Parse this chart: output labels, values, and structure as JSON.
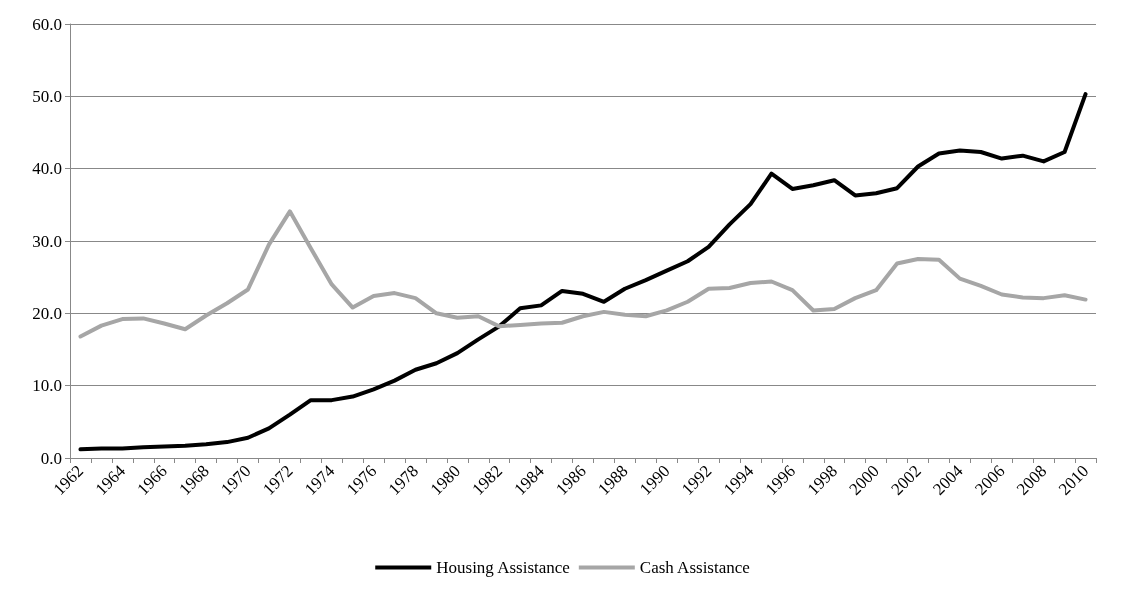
{
  "chart_data": {
    "type": "line",
    "categories": [
      "1962",
      null,
      "1964",
      null,
      "1966",
      null,
      "1968",
      null,
      "1970",
      null,
      "1972",
      null,
      "1974",
      null,
      "1976",
      null,
      "1978",
      null,
      "1980",
      null,
      "1982",
      null,
      "1984",
      null,
      "1986",
      null,
      "1988",
      null,
      "1990",
      null,
      "1992",
      null,
      "1994",
      null,
      "1996",
      null,
      "1998",
      null,
      "2000",
      null,
      "2002",
      null,
      "2004",
      null,
      "2006",
      null,
      "2008",
      null,
      "2010"
    ],
    "series": [
      {
        "name": "Housing Assistance",
        "color": "#000000",
        "values": [
          1.2,
          1.3,
          1.3,
          1.5,
          1.6,
          1.7,
          1.9,
          2.2,
          2.8,
          4.1,
          6.0,
          8.0,
          8.0,
          8.5,
          9.5,
          10.7,
          12.2,
          13.1,
          14.5,
          16.4,
          18.2,
          20.7,
          21.1,
          23.1,
          22.7,
          21.6,
          23.4,
          24.6,
          25.9,
          27.2,
          29.2,
          32.3,
          35.1,
          39.3,
          37.2,
          37.7,
          38.4,
          36.3,
          36.6,
          37.3,
          40.3,
          42.1,
          42.5,
          42.3,
          41.4,
          41.8,
          41.0,
          42.3,
          50.3
        ]
      },
      {
        "name": "Cash Assistance",
        "color": "#a6a6a6",
        "values": [
          16.8,
          18.3,
          19.2,
          19.3,
          18.6,
          17.8,
          19.7,
          21.4,
          23.3,
          29.5,
          34.1,
          29.0,
          24.0,
          20.8,
          22.4,
          22.8,
          22.1,
          20.0,
          19.4,
          19.6,
          18.2,
          18.4,
          18.6,
          18.7,
          19.6,
          20.2,
          19.8,
          19.6,
          20.4,
          21.6,
          23.4,
          23.5,
          24.2,
          24.4,
          23.2,
          20.4,
          20.6,
          22.1,
          23.2,
          26.9,
          27.5,
          27.4,
          24.8,
          23.8,
          22.6,
          22.2,
          22.1,
          22.5,
          21.9
        ]
      }
    ],
    "ylim": [
      0,
      60
    ],
    "yticks": [
      {
        "value": 0,
        "label": "0.0"
      },
      {
        "value": 10,
        "label": "10.0"
      },
      {
        "value": 20,
        "label": "20.0"
      },
      {
        "value": 30,
        "label": "30.0"
      },
      {
        "value": 40,
        "label": "40.0"
      },
      {
        "value": 50,
        "label": "50.0"
      },
      {
        "value": 60,
        "label": "60.0"
      }
    ],
    "grid": "y",
    "legend": "bottom",
    "marker": "none",
    "line_style": "solid"
  }
}
